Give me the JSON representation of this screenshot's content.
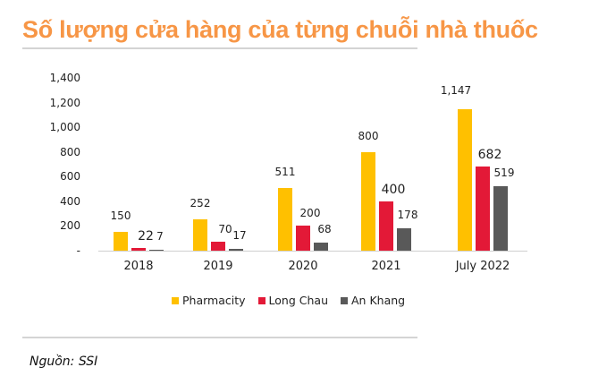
{
  "title": "Số lượng cửa hàng của từng chuỗi nhà thuốc",
  "source": "Nguồn: SSI",
  "colors": {
    "title": "#f79646",
    "Pharmacity": "#ffc000",
    "Long Chau": "#e31937",
    "An Khang": "#595959"
  },
  "y_ticks": [
    "1,400",
    "1,200",
    "1,000",
    "800",
    "600",
    "400",
    "200",
    "-"
  ],
  "legend": [
    "Pharmacity",
    "Long Chau",
    "An Khang"
  ],
  "chart_data": {
    "type": "bar",
    "title": "Số lượng cửa hàng của từng chuỗi nhà thuốc",
    "categories": [
      "2018",
      "2019",
      "2020",
      "2021",
      "July 2022"
    ],
    "series": [
      {
        "name": "Pharmacity",
        "color": "#ffc000",
        "values": [
          150,
          252,
          511,
          800,
          1147
        ],
        "labels": [
          "150",
          "252",
          "511",
          "800",
          "1,147"
        ]
      },
      {
        "name": "Long Chau",
        "color": "#e31937",
        "values": [
          22,
          70,
          200,
          400,
          682
        ],
        "labels": [
          "22",
          "70",
          "200",
          "400",
          "682"
        ]
      },
      {
        "name": "An Khang",
        "color": "#595959",
        "values": [
          7,
          17,
          68,
          178,
          519
        ],
        "labels": [
          "7",
          "17",
          "68",
          "178",
          "519"
        ]
      }
    ],
    "xlabel": "",
    "ylabel": "",
    "ylim": [
      0,
      1400
    ],
    "yticks": [
      0,
      200,
      400,
      600,
      800,
      1000,
      1200,
      1400
    ],
    "grid": false,
    "legend_position": "bottom"
  }
}
